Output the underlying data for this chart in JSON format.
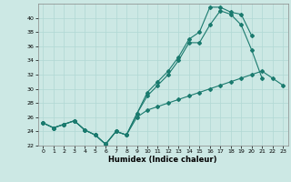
{
  "title": "",
  "xlabel": "Humidex (Indice chaleur)",
  "bg_color": "#cce8e4",
  "line_color": "#1a7a6e",
  "grid_color": "#b0d8d4",
  "x": [
    0,
    1,
    2,
    3,
    4,
    5,
    6,
    7,
    8,
    9,
    10,
    11,
    12,
    13,
    14,
    15,
    16,
    17,
    18,
    19,
    20,
    21,
    22,
    23
  ],
  "line1": [
    25.2,
    24.5,
    25.0,
    25.5,
    24.2,
    23.5,
    22.2,
    24.0,
    23.5,
    26.5,
    29.0,
    30.5,
    32.0,
    34.0,
    36.5,
    36.5,
    39.0,
    41.0,
    40.5,
    39.0,
    35.5,
    31.5,
    null,
    null
  ],
  "line2": [
    25.2,
    24.5,
    25.0,
    25.5,
    24.2,
    23.5,
    22.2,
    24.0,
    23.5,
    26.5,
    29.5,
    31.0,
    32.5,
    34.5,
    37.0,
    38.0,
    41.5,
    41.5,
    40.8,
    40.5,
    37.5,
    null,
    null,
    null
  ],
  "line3": [
    25.2,
    24.5,
    25.0,
    25.5,
    24.2,
    23.5,
    22.2,
    24.0,
    23.5,
    26.0,
    27.0,
    27.5,
    28.0,
    28.5,
    29.0,
    29.5,
    30.0,
    30.5,
    31.0,
    31.5,
    32.0,
    32.5,
    31.5,
    30.5
  ],
  "ylim": [
    22,
    42
  ],
  "xlim": [
    -0.5,
    23.5
  ],
  "yticks": [
    22,
    24,
    26,
    28,
    30,
    32,
    34,
    36,
    38,
    40
  ],
  "xticks": [
    0,
    1,
    2,
    3,
    4,
    5,
    6,
    7,
    8,
    9,
    10,
    11,
    12,
    13,
    14,
    15,
    16,
    17,
    18,
    19,
    20,
    21,
    22,
    23
  ]
}
